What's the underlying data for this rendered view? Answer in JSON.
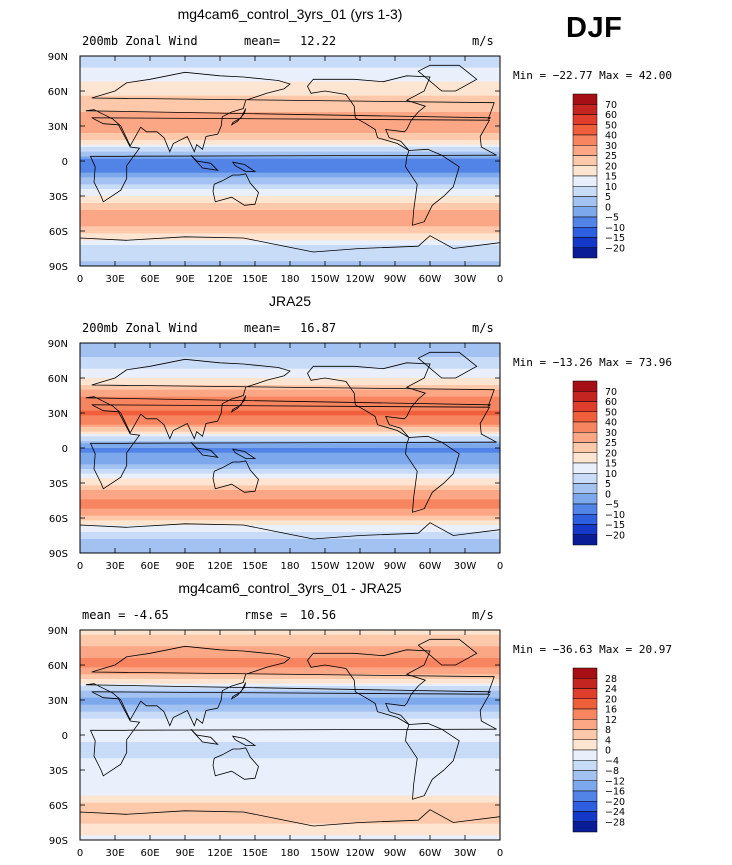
{
  "season": "DJF",
  "panels": [
    {
      "title": "mg4cam6_control_3yrs_01 (yrs 1-3)",
      "left_label": "200mb Zonal Wind",
      "stat_label": "mean=",
      "stat_value": "12.22",
      "units": "m/s",
      "min_label": "Min = ",
      "min_value": "−22.77",
      "max_label": "Max = ",
      "max_value": "42.00"
    },
    {
      "title": "JRA25",
      "left_label": "200mb Zonal Wind",
      "stat_label": "mean=",
      "stat_value": "16.87",
      "units": "m/s",
      "min_label": "Min = ",
      "min_value": "−13.26",
      "max_label": "Max = ",
      "max_value": "73.96"
    },
    {
      "title": "mg4cam6_control_3yrs_01 - JRA25",
      "left_label": "mean =  -4.65",
      "stat_label": "rmse =",
      "stat_value": "10.56",
      "units": "m/s",
      "min_label": "Min = ",
      "min_value": "−36.63",
      "max_label": "Max = ",
      "max_value": "20.97"
    }
  ],
  "chart_data": [
    {
      "type": "heatmap",
      "title": "mg4cam6_control_3yrs_01 (yrs 1-3)",
      "xlabel": "",
      "ylabel": "",
      "x_ticks": [
        "0",
        "30E",
        "60E",
        "90E",
        "120E",
        "150E",
        "180",
        "150W",
        "120W",
        "90W",
        "60W",
        "30W",
        "0"
      ],
      "y_ticks": [
        "90N",
        "60N",
        "30N",
        "0",
        "30S",
        "60S",
        "90S"
      ],
      "xlim": [
        0,
        360
      ],
      "ylim": [
        -90,
        90
      ],
      "colorbar_levels": [
        "70",
        "60",
        "50",
        "40",
        "30",
        "25",
        "20",
        "15",
        "10",
        "5",
        "0",
        "−5",
        "−10",
        "−15",
        "−20"
      ],
      "colorbar_colors": [
        "#a50f15",
        "#c52520",
        "#e03d2c",
        "#ef5f3c",
        "#f78560",
        "#fba785",
        "#fdc9aa",
        "#fde5d2",
        "#eaf0fb",
        "#c8dbf7",
        "#a3c2f1",
        "#7ea8ec",
        "#5283e6",
        "#2d5fe0",
        "#1538c8",
        "#0b1d96"
      ],
      "band_lats": [
        90,
        75,
        60,
        50,
        40,
        30,
        20,
        10,
        0,
        -10,
        -20,
        -30,
        -40,
        -50,
        -60,
        -75,
        -90
      ],
      "band_values": [
        6,
        12,
        18,
        22,
        26,
        30,
        22,
        8,
        -8,
        -6,
        6,
        14,
        24,
        30,
        22,
        8,
        4
      ],
      "min": -22.77,
      "max": 42.0
    },
    {
      "type": "heatmap",
      "title": "JRA25",
      "xlabel": "",
      "ylabel": "",
      "x_ticks": [
        "0",
        "30E",
        "60E",
        "90E",
        "120E",
        "150E",
        "180",
        "150W",
        "120W",
        "90W",
        "60W",
        "30W",
        "0"
      ],
      "y_ticks": [
        "90N",
        "60N",
        "30N",
        "0",
        "30S",
        "60S",
        "90S"
      ],
      "xlim": [
        0,
        360
      ],
      "ylim": [
        -90,
        90
      ],
      "colorbar_levels": [
        "70",
        "60",
        "50",
        "40",
        "30",
        "25",
        "20",
        "15",
        "10",
        "5",
        "0",
        "−5",
        "−10",
        "−15",
        "−20"
      ],
      "colorbar_colors": [
        "#a50f15",
        "#c52520",
        "#e03d2c",
        "#ef5f3c",
        "#f78560",
        "#fba785",
        "#fdc9aa",
        "#fde5d2",
        "#eaf0fb",
        "#c8dbf7",
        "#a3c2f1",
        "#7ea8ec",
        "#5283e6",
        "#2d5fe0",
        "#1538c8",
        "#0b1d96"
      ],
      "band_lats": [
        90,
        75,
        60,
        50,
        40,
        30,
        20,
        10,
        0,
        -10,
        -20,
        -30,
        -40,
        -50,
        -60,
        -75,
        -90
      ],
      "band_values": [
        2,
        6,
        14,
        24,
        34,
        42,
        30,
        10,
        -6,
        -4,
        8,
        18,
        28,
        32,
        22,
        6,
        2
      ],
      "min": -13.26,
      "max": 73.96
    },
    {
      "type": "heatmap",
      "title": "mg4cam6_control_3yrs_01 - JRA25",
      "xlabel": "",
      "ylabel": "",
      "x_ticks": [
        "0",
        "30E",
        "60E",
        "90E",
        "120E",
        "150E",
        "180",
        "150W",
        "120W",
        "90W",
        "60W",
        "30W",
        "0"
      ],
      "y_ticks": [
        "90N",
        "60N",
        "30N",
        "0",
        "30S",
        "60S",
        "90S"
      ],
      "xlim": [
        0,
        360
      ],
      "ylim": [
        -90,
        90
      ],
      "colorbar_levels": [
        "28",
        "24",
        "20",
        "16",
        "12",
        "8",
        "4",
        "0",
        "−4",
        "−8",
        "−12",
        "−16",
        "−20",
        "−24",
        "−28"
      ],
      "colorbar_colors": [
        "#a50f15",
        "#c52520",
        "#e03d2c",
        "#ef5f3c",
        "#f78560",
        "#fba785",
        "#fdc9aa",
        "#fde5d2",
        "#eaf0fb",
        "#c8dbf7",
        "#a3c2f1",
        "#7ea8ec",
        "#5283e6",
        "#2d5fe0",
        "#1538c8",
        "#0b1d96"
      ],
      "band_lats": [
        90,
        75,
        60,
        50,
        40,
        30,
        20,
        10,
        0,
        -10,
        -20,
        -30,
        -40,
        -50,
        -60,
        -75,
        -90
      ],
      "band_values": [
        2,
        8,
        14,
        6,
        -6,
        -14,
        -8,
        -2,
        -2,
        -6,
        -4,
        -2,
        -4,
        -2,
        6,
        4,
        -2
      ],
      "min": -36.63,
      "max": 20.97
    }
  ]
}
